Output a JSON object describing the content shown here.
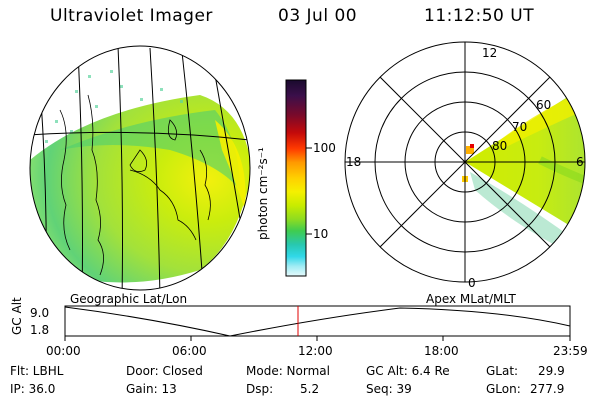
{
  "header": {
    "instrument": "Ultraviolet Imager",
    "date": "03 Jul 00",
    "time": "11:12:50 UT"
  },
  "colorbar": {
    "unit_label": "photon cm⁻²s⁻¹",
    "ticks": [
      "100",
      "10"
    ],
    "colors": [
      "#1a0a2e",
      "#3b0f4a",
      "#7a0a2a",
      "#c40a0a",
      "#ff3a00",
      "#ff9900",
      "#ffd000",
      "#f5f000",
      "#c8ec00",
      "#8fdc20",
      "#3fcc50",
      "#28c8b0",
      "#30d8e8",
      "#a0ecf4",
      "#e6fafc"
    ]
  },
  "left_panel": {
    "caption": "Geographic Lat/Lon"
  },
  "right_panel": {
    "caption": "Apex MLat/MLT",
    "mlt_labels": {
      "top": "12",
      "left": "18",
      "right": "6",
      "bottom": "0"
    },
    "lat_labels": [
      "80",
      "70",
      "60"
    ]
  },
  "timeline": {
    "axis_label": "GC Alt",
    "y_ticks": [
      "9.0",
      "1.8"
    ],
    "x_ticks": [
      "00:00",
      "06:00",
      "12:00",
      "18:00",
      "23:59"
    ],
    "current_time_color": "#e00000"
  },
  "info": {
    "row1": {
      "flt": "Flt: LBHL",
      "door": "Door: Closed",
      "mode": "Mode: Normal",
      "gcalt": "GC Alt: 6.4 Re",
      "glat_label": "GLat:",
      "glat_value": "29.9"
    },
    "row2": {
      "ip": "IP: 36.0",
      "gain": "Gain: 13",
      "dsp_label": "Dsp:",
      "dsp_value": "5.2",
      "seq": "Seq: 39",
      "glon_label": "GLon:",
      "glon_value": "277.9"
    }
  }
}
